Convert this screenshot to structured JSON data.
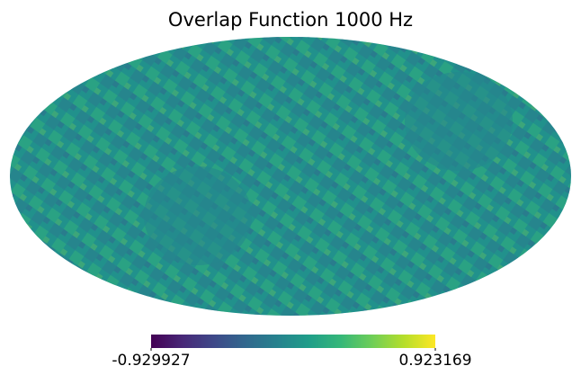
{
  "chart_data": {
    "type": "mollweide",
    "title": "Overlap Function 1000 Hz",
    "colormap": [
      "#440154",
      "#482878",
      "#3e4989",
      "#31688e",
      "#26828e",
      "#1f9e89",
      "#35b779",
      "#6ece58",
      "#b5de2b",
      "#fde725"
    ],
    "colorbar_lim": [
      -0.929927,
      0.923169
    ]
  }
}
